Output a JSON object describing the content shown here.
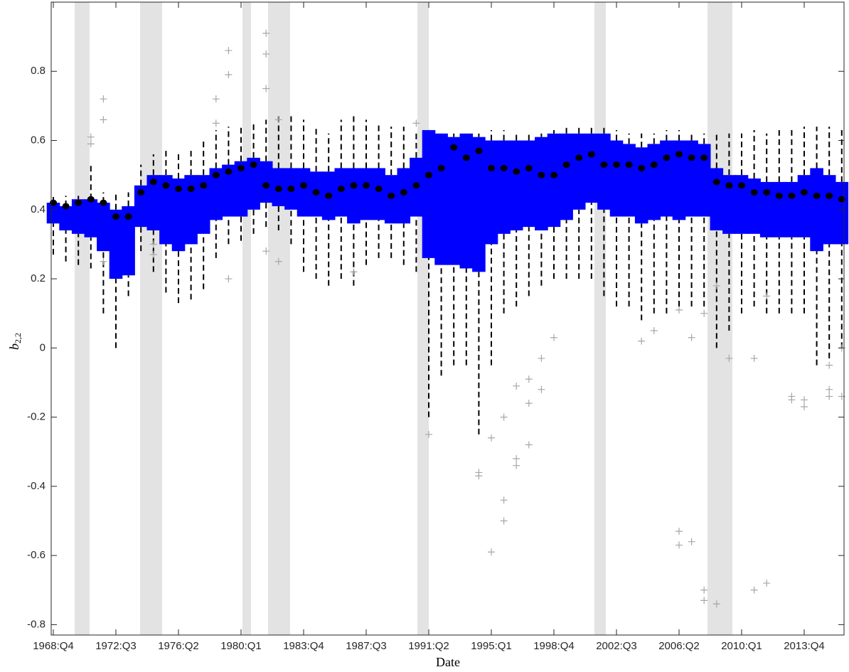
{
  "chart_data": {
    "type": "box",
    "x_label": "Date",
    "y_label": "b",
    "y_label_sub": "2,2",
    "categories": [
      "1968:Q4",
      null,
      null,
      null,
      null,
      "1972:Q3",
      null,
      null,
      null,
      null,
      "1976:Q2",
      null,
      null,
      null,
      null,
      "1980:Q1",
      null,
      null,
      null,
      null,
      "1983:Q4",
      null,
      null,
      null,
      null,
      "1987:Q3",
      null,
      null,
      null,
      null,
      "1991:Q2",
      null,
      null,
      null,
      null,
      "1995:Q1",
      null,
      null,
      null,
      null,
      "1998:Q4",
      null,
      null,
      null,
      null,
      "2002:Q3",
      null,
      null,
      null,
      null,
      "2006:Q2",
      null,
      null,
      null,
      null,
      "2010:Q1",
      null,
      null,
      null,
      null,
      "2013:Q4",
      null,
      null,
      null
    ],
    "whisker_low": [
      0.27,
      0.25,
      0.24,
      0.23,
      0.1,
      0.0,
      0.15,
      0.28,
      0.22,
      0.16,
      0.13,
      0.14,
      0.17,
      0.26,
      0.3,
      0.31,
      0.33,
      0.35,
      0.34,
      0.3,
      0.22,
      0.2,
      0.18,
      0.2,
      0.18,
      0.24,
      0.26,
      0.26,
      0.24,
      0.22,
      -0.2,
      -0.08,
      -0.05,
      -0.05,
      -0.25,
      -0.05,
      0.1,
      0.12,
      0.15,
      0.18,
      0.2,
      0.2,
      0.2,
      0.2,
      0.15,
      0.12,
      0.12,
      0.08,
      0.1,
      0.1,
      0.12,
      0.12,
      0.12,
      0.0,
      0.05,
      0.1,
      0.12,
      0.1,
      0.1,
      0.1,
      0.1,
      -0.05,
      -0.03,
      0.0
    ],
    "q1": [
      0.36,
      0.34,
      0.33,
      0.32,
      0.28,
      0.2,
      0.21,
      0.35,
      0.34,
      0.3,
      0.28,
      0.3,
      0.33,
      0.37,
      0.38,
      0.38,
      0.4,
      0.42,
      0.41,
      0.4,
      0.38,
      0.38,
      0.37,
      0.38,
      0.36,
      0.37,
      0.37,
      0.36,
      0.36,
      0.38,
      0.26,
      0.24,
      0.24,
      0.23,
      0.22,
      0.3,
      0.33,
      0.34,
      0.35,
      0.34,
      0.35,
      0.37,
      0.4,
      0.42,
      0.4,
      0.38,
      0.38,
      0.36,
      0.37,
      0.38,
      0.37,
      0.38,
      0.38,
      0.34,
      0.33,
      0.33,
      0.33,
      0.32,
      0.32,
      0.32,
      0.32,
      0.28,
      0.3,
      0.3
    ],
    "median": [
      0.42,
      0.41,
      0.42,
      0.43,
      0.42,
      0.38,
      0.38,
      0.45,
      0.48,
      0.47,
      0.46,
      0.46,
      0.47,
      0.5,
      0.51,
      0.52,
      0.53,
      0.47,
      0.46,
      0.46,
      0.47,
      0.45,
      0.44,
      0.46,
      0.47,
      0.47,
      0.46,
      0.44,
      0.45,
      0.47,
      0.5,
      0.52,
      0.58,
      0.55,
      0.57,
      0.52,
      0.52,
      0.51,
      0.52,
      0.5,
      0.5,
      0.53,
      0.55,
      0.56,
      0.53,
      0.53,
      0.53,
      0.52,
      0.53,
      0.55,
      0.56,
      0.55,
      0.55,
      0.48,
      0.47,
      0.47,
      0.45,
      0.45,
      0.44,
      0.44,
      0.45,
      0.44,
      0.44,
      0.43
    ],
    "q3": [
      0.42,
      0.41,
      0.43,
      0.43,
      0.42,
      0.4,
      0.41,
      0.47,
      0.5,
      0.5,
      0.49,
      0.5,
      0.5,
      0.52,
      0.53,
      0.54,
      0.55,
      0.54,
      0.52,
      0.52,
      0.52,
      0.51,
      0.51,
      0.52,
      0.52,
      0.52,
      0.52,
      0.5,
      0.52,
      0.55,
      0.63,
      0.62,
      0.61,
      0.62,
      0.61,
      0.6,
      0.6,
      0.6,
      0.6,
      0.61,
      0.62,
      0.62,
      0.62,
      0.62,
      0.62,
      0.6,
      0.59,
      0.58,
      0.59,
      0.6,
      0.6,
      0.6,
      0.59,
      0.52,
      0.5,
      0.5,
      0.49,
      0.48,
      0.48,
      0.48,
      0.5,
      0.52,
      0.5,
      0.48
    ],
    "whisker_high": [
      0.44,
      0.44,
      0.44,
      0.53,
      0.45,
      0.45,
      0.45,
      0.53,
      0.56,
      0.57,
      0.57,
      0.57,
      0.6,
      0.63,
      0.64,
      0.64,
      0.65,
      0.66,
      0.67,
      0.68,
      0.66,
      0.64,
      0.62,
      0.66,
      0.67,
      0.66,
      0.65,
      0.64,
      0.64,
      0.62,
      0.63,
      0.62,
      0.62,
      0.62,
      0.62,
      0.63,
      0.63,
      0.62,
      0.62,
      0.62,
      0.63,
      0.64,
      0.64,
      0.64,
      0.64,
      0.63,
      0.62,
      0.62,
      0.62,
      0.63,
      0.63,
      0.62,
      0.62,
      0.62,
      0.62,
      0.62,
      0.63,
      0.62,
      0.63,
      0.64,
      0.64,
      0.64,
      0.64,
      0.64
    ],
    "outliers": [
      [],
      [],
      [],
      [
        0.61,
        0.59
      ],
      [
        0.72,
        0.66,
        0.25
      ],
      [],
      [],
      [],
      [
        0.3,
        0.27
      ],
      [],
      [],
      [],
      [],
      [
        0.72,
        0.65
      ],
      [
        0.79,
        0.86,
        0.2
      ],
      [],
      [],
      [
        0.91,
        0.85,
        0.75,
        0.28
      ],
      [
        0.66,
        0.25
      ],
      [],
      [],
      [],
      [],
      [],
      [
        0.22
      ],
      [],
      [],
      [],
      [],
      [
        0.65
      ],
      [
        -0.25
      ],
      [],
      [],
      [],
      [
        -0.36,
        -0.37
      ],
      [
        -0.59,
        -0.26
      ],
      [
        -0.5,
        -0.44,
        -0.2
      ],
      [
        -0.34,
        -0.32,
        -0.11
      ],
      [
        -0.28,
        -0.16,
        -0.09
      ],
      [
        -0.12,
        -0.03
      ],
      [
        0.03
      ],
      [],
      [],
      [],
      [],
      [],
      [],
      [
        0.02
      ],
      [
        0.05
      ],
      [],
      [
        -0.53,
        -0.57,
        0.11
      ],
      [
        -0.56,
        0.03
      ],
      [
        -0.73,
        -0.7,
        0.1
      ],
      [
        -0.74,
        0.18
      ],
      [
        -0.03
      ],
      [],
      [
        -0.7,
        -0.03
      ],
      [
        -0.68,
        0.15
      ],
      [],
      [
        -0.14,
        -0.15
      ],
      [
        -0.15,
        -0.17
      ],
      [],
      [
        -0.14,
        -0.12,
        -0.05
      ],
      [
        -0.14,
        0
      ]
    ],
    "box_color": "#0000ff",
    "whisker_color": "#000000",
    "median_color": "#000000",
    "outlier_color": "#a6a6a6",
    "ylim": [
      -0.83,
      1.0
    ],
    "yticks": [
      -0.8,
      -0.6,
      -0.4,
      -0.2,
      0,
      0.2,
      0.4,
      0.6,
      0.8
    ]
  }
}
